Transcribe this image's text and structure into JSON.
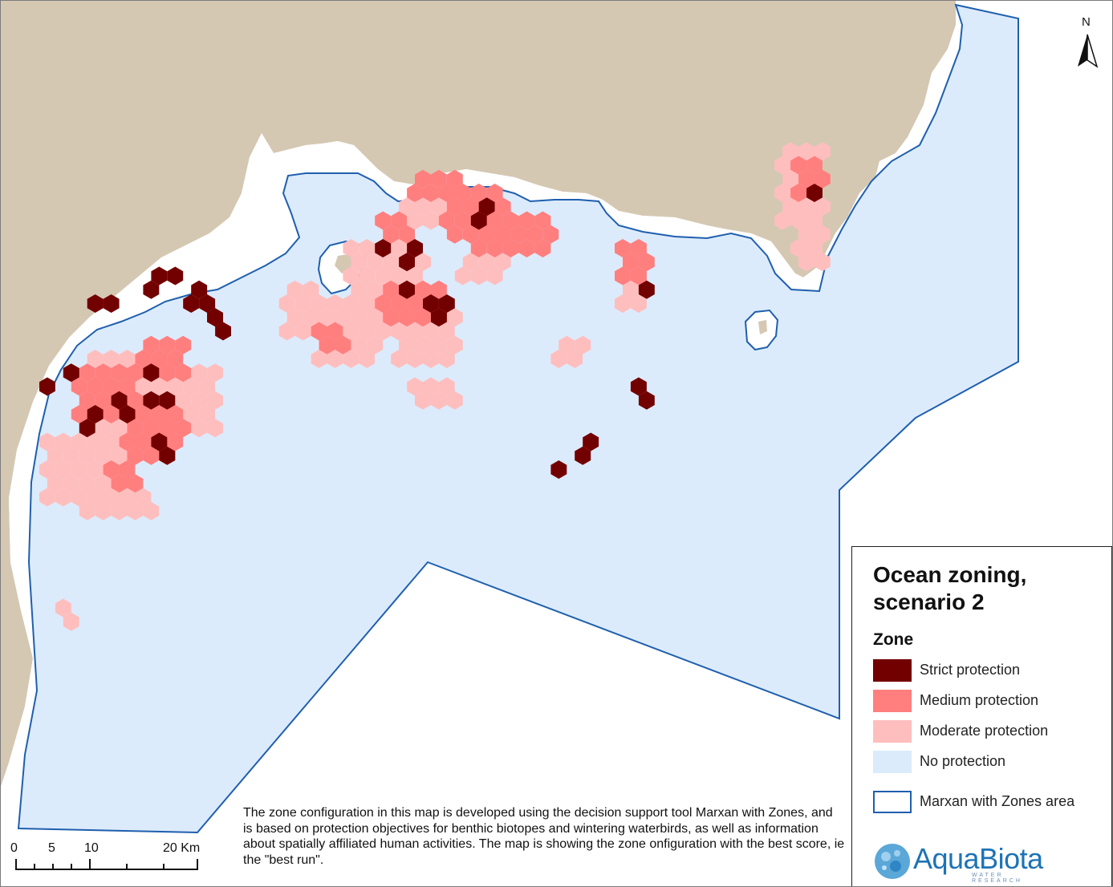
{
  "map": {
    "colors": {
      "land": "#d5c8b3",
      "coastal_buffer": "#ffffff",
      "sea_area": "#dcebfb",
      "area_outline": "#1f5fae",
      "strict": "#730000",
      "medium": "#ff7f7f",
      "moderate": "#ffbebe"
    },
    "north_label": "N"
  },
  "legend": {
    "title": "Ocean zoning, scenario 2",
    "subheading": "Zone",
    "items": [
      {
        "label": "Strict protection",
        "color": "#730000"
      },
      {
        "label": "Medium protection",
        "color": "#ff7f7f"
      },
      {
        "label": "Moderate protection",
        "color": "#ffbebe"
      },
      {
        "label": "No protection",
        "color": "#dcebfb"
      },
      {
        "label": "Marxan with Zones area",
        "color": "#ffffff",
        "outline": "#1f5fae"
      }
    ]
  },
  "caption": "The zone configuration in this map is developed using the decision support tool Marxan with Zones, and is based on protection objectives for benthic biotopes and wintering waterbirds, as well as information about spatially affiliated human activities. The map is showing the zone onfiguration with the best score, ie the \"best run\".",
  "scalebar": {
    "labels": [
      "0",
      "5",
      "10",
      "20 Km"
    ]
  },
  "logo": {
    "name": "AquaBiota",
    "tagline": "WATER RESEARCH"
  }
}
